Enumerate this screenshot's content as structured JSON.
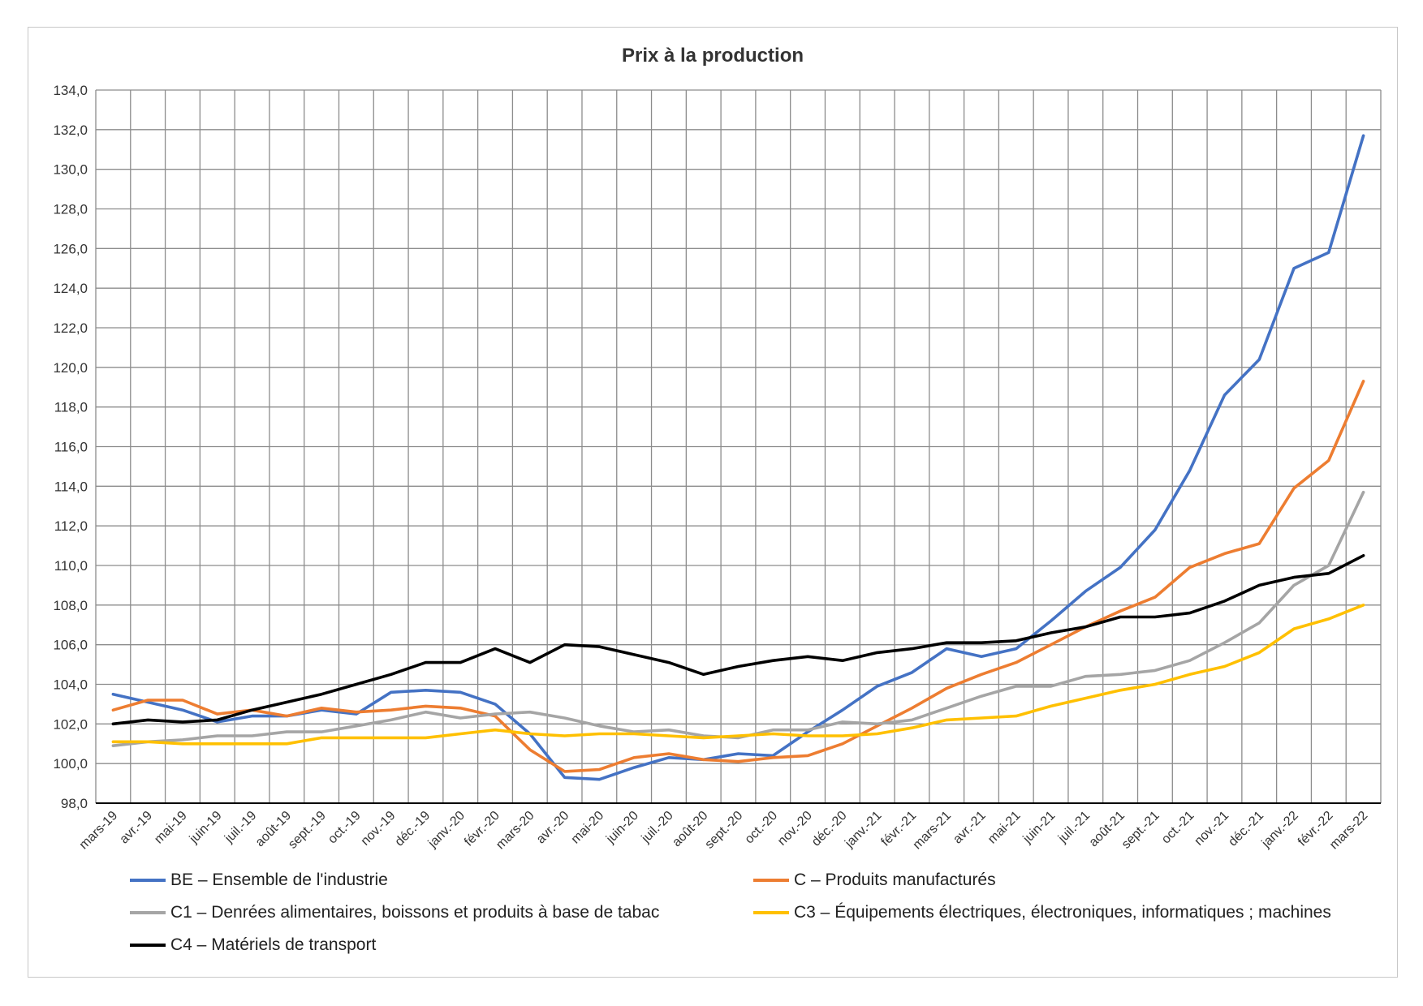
{
  "chart_data": {
    "type": "line",
    "title": "Prix à la production",
    "xlabel": "",
    "ylabel": "",
    "ylim": [
      98,
      134
    ],
    "yticks": [
      "98,0",
      "100,0",
      "102,0",
      "104,0",
      "106,0",
      "108,0",
      "110,0",
      "112,0",
      "114,0",
      "116,0",
      "118,0",
      "120,0",
      "122,0",
      "124,0",
      "126,0",
      "128,0",
      "130,0",
      "132,0",
      "134,0"
    ],
    "grid": true,
    "legend_position": "bottom",
    "categories": [
      "mars-19",
      "avr.-19",
      "mai-19",
      "juin-19",
      "juil.-19",
      "août-19",
      "sept.-19",
      "oct.-19",
      "nov.-19",
      "déc.-19",
      "janv.-20",
      "févr.-20",
      "mars-20",
      "avr.-20",
      "mai-20",
      "juin-20",
      "juil.-20",
      "août-20",
      "sept.-20",
      "oct.-20",
      "nov.-20",
      "déc.-20",
      "janv.-21",
      "févr.-21",
      "mars-21",
      "avr.-21",
      "mai-21",
      "juin-21",
      "juil.-21",
      "août-21",
      "sept.-21",
      "oct.-21",
      "nov.-21",
      "déc.-21",
      "janv.-22",
      "févr.-22",
      "mars-22"
    ],
    "series": [
      {
        "name": "BE – Ensemble de l'industrie",
        "color": "#4472c4",
        "values": [
          103.5,
          103.1,
          102.7,
          102.1,
          102.4,
          102.4,
          102.7,
          102.5,
          103.6,
          103.7,
          103.6,
          103.0,
          101.5,
          99.3,
          99.2,
          99.8,
          100.3,
          100.2,
          100.5,
          100.4,
          101.6,
          102.7,
          103.9,
          104.6,
          105.8,
          105.4,
          105.8,
          107.2,
          108.7,
          109.9,
          111.8,
          114.8,
          118.6,
          120.4,
          125.0,
          125.8,
          131.7
        ]
      },
      {
        "name": "C – Produits manufacturés",
        "color": "#ed7d31",
        "values": [
          102.7,
          103.2,
          103.2,
          102.5,
          102.7,
          102.4,
          102.8,
          102.6,
          102.7,
          102.9,
          102.8,
          102.4,
          100.7,
          99.6,
          99.7,
          100.3,
          100.5,
          100.2,
          100.1,
          100.3,
          100.4,
          101.0,
          101.9,
          102.8,
          103.8,
          104.5,
          105.1,
          106.0,
          106.9,
          107.7,
          108.4,
          109.9,
          110.6,
          111.1,
          113.9,
          115.3,
          119.3
        ]
      },
      {
        "name": "C1 – Denrées alimentaires, boissons et produits à base de tabac",
        "color": "#a5a5a5",
        "values": [
          100.9,
          101.1,
          101.2,
          101.4,
          101.4,
          101.6,
          101.6,
          101.9,
          102.2,
          102.6,
          102.3,
          102.5,
          102.6,
          102.3,
          101.9,
          101.6,
          101.7,
          101.4,
          101.3,
          101.7,
          101.7,
          102.1,
          102.0,
          102.2,
          102.8,
          103.4,
          103.9,
          103.9,
          104.4,
          104.5,
          104.7,
          105.2,
          106.1,
          107.1,
          109.0,
          110.0,
          113.7
        ]
      },
      {
        "name": "C3 – Équipements électriques, électroniques, informatiques ; machines",
        "color": "#ffc000",
        "values": [
          101.1,
          101.1,
          101.0,
          101.0,
          101.0,
          101.0,
          101.3,
          101.3,
          101.3,
          101.3,
          101.5,
          101.7,
          101.5,
          101.4,
          101.5,
          101.5,
          101.4,
          101.3,
          101.4,
          101.5,
          101.4,
          101.4,
          101.5,
          101.8,
          102.2,
          102.3,
          102.4,
          102.9,
          103.3,
          103.7,
          104.0,
          104.5,
          104.9,
          105.6,
          106.8,
          107.3,
          108.0
        ]
      },
      {
        "name": "C4 – Matériels de transport",
        "color": "#000000",
        "values": [
          102.0,
          102.2,
          102.1,
          102.2,
          102.7,
          103.1,
          103.5,
          104.0,
          104.5,
          105.1,
          105.1,
          105.8,
          105.1,
          106.0,
          105.9,
          105.5,
          105.1,
          104.5,
          104.9,
          105.2,
          105.4,
          105.2,
          105.6,
          105.8,
          106.1,
          106.1,
          106.2,
          106.6,
          106.9,
          107.4,
          107.4,
          107.6,
          108.2,
          109.0,
          109.4,
          109.6,
          110.5
        ]
      }
    ]
  }
}
